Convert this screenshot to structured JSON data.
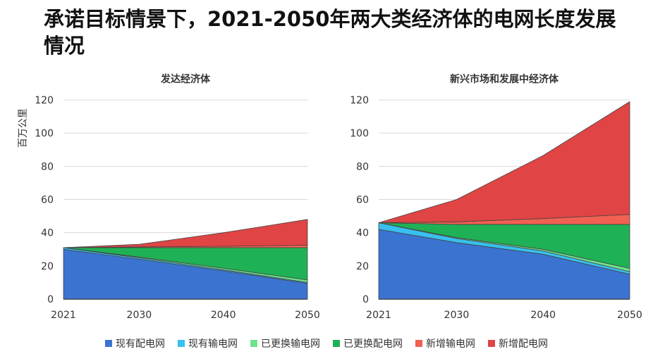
{
  "title": "承诺目标情景下，2021-2050年两大类经济体的电网长度发展情况",
  "ylabel": "百万公里",
  "colors": {
    "existing_distribution": "#3b73d1",
    "existing_transmission": "#38c0ee",
    "replaced_transmission": "#6fe28c",
    "replaced_distribution": "#1fb155",
    "new_transmission": "#f26052",
    "new_distribution": "#e04444"
  },
  "legend": [
    {
      "key": "existing_distribution",
      "label": "现有配电网"
    },
    {
      "key": "existing_transmission",
      "label": "现有输电网"
    },
    {
      "key": "replaced_transmission",
      "label": "已更换输电网"
    },
    {
      "key": "replaced_distribution",
      "label": "已更换配电网"
    },
    {
      "key": "new_transmission",
      "label": "新增输电网"
    },
    {
      "key": "new_distribution",
      "label": "新增配电网"
    }
  ],
  "chart_data": [
    {
      "type": "area",
      "stacked": true,
      "title": "发达经济体",
      "xlabel": "",
      "ylabel": "百万公里",
      "x": [
        2021,
        2030,
        2040,
        2050
      ],
      "xticks": [
        "2021",
        "2030",
        "2040",
        "2050"
      ],
      "ylim": [
        0,
        120
      ],
      "yticks": [
        "0",
        "20",
        "40",
        "60",
        "80",
        "100",
        "120"
      ],
      "series": [
        {
          "key": "existing_distribution",
          "name": "现有配电网",
          "values": [
            30,
            24,
            17,
            9.5
          ]
        },
        {
          "key": "existing_transmission",
          "name": "现有输电网",
          "values": [
            1,
            0.8,
            0.7,
            0.5
          ]
        },
        {
          "key": "replaced_transmission",
          "name": "已更换输电网",
          "values": [
            0,
            0.5,
            0.9,
            1.5
          ]
        },
        {
          "key": "replaced_distribution",
          "name": "已更换配电网",
          "values": [
            0,
            5.7,
            12.4,
            19.5
          ]
        },
        {
          "key": "new_transmission",
          "name": "新增输电网",
          "values": [
            0,
            0.4,
            0.8,
            1.5
          ]
        },
        {
          "key": "new_distribution",
          "name": "新增配电网",
          "values": [
            0,
            1.6,
            8.2,
            15.5
          ]
        }
      ]
    },
    {
      "type": "area",
      "stacked": true,
      "title": "新兴市场和发展中经济体",
      "xlabel": "",
      "ylabel": "",
      "x": [
        2021,
        2030,
        2040,
        2050
      ],
      "xticks": [
        "2021",
        "2030",
        "2040",
        "2050"
      ],
      "ylim": [
        0,
        120
      ],
      "yticks": [
        "0",
        "20",
        "40",
        "60",
        "80",
        "100",
        "120"
      ],
      "series": [
        {
          "key": "existing_distribution",
          "name": "现有配电网",
          "values": [
            42,
            34,
            27,
            15
          ]
        },
        {
          "key": "existing_transmission",
          "name": "现有输电网",
          "values": [
            4,
            2.5,
            2,
            1.5
          ]
        },
        {
          "key": "replaced_transmission",
          "name": "已更换输电网",
          "values": [
            0,
            0.5,
            1,
            2
          ]
        },
        {
          "key": "replaced_distribution",
          "name": "已更换配电网",
          "values": [
            0,
            8,
            15,
            26.5
          ]
        },
        {
          "key": "new_transmission",
          "name": "新增输电网",
          "values": [
            0,
            1.5,
            3.5,
            6
          ]
        },
        {
          "key": "new_distribution",
          "name": "新增配电网",
          "values": [
            0,
            13.5,
            38,
            68
          ]
        }
      ]
    }
  ]
}
